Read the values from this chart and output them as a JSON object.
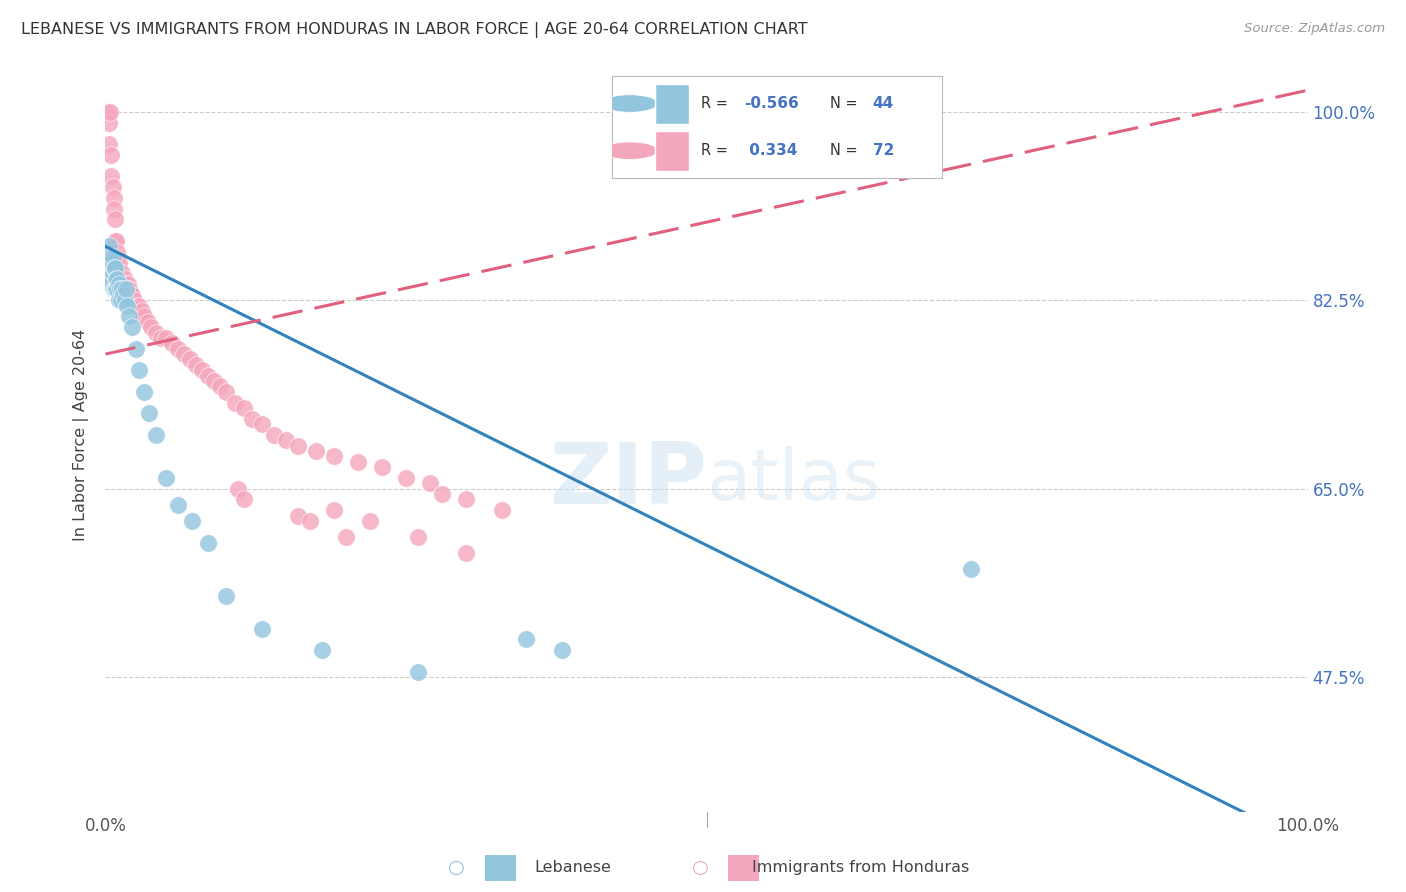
{
  "title": "LEBANESE VS IMMIGRANTS FROM HONDURAS IN LABOR FORCE | AGE 20-64 CORRELATION CHART",
  "source": "Source: ZipAtlas.com",
  "ylabel": "In Labor Force | Age 20-64",
  "xlim": [
    0.0,
    1.0
  ],
  "ylim": [
    0.35,
    1.05
  ],
  "yticks": [
    0.475,
    0.65,
    0.825,
    1.0
  ],
  "ytick_labels": [
    "47.5%",
    "65.0%",
    "82.5%",
    "100.0%"
  ],
  "xtick_labels": [
    "0.0%",
    "100.0%"
  ],
  "xticks": [
    0.0,
    1.0
  ],
  "blue_color": "#92c5de",
  "pink_color": "#f4a6bc",
  "blue_line_color": "#3182bd",
  "pink_line_color": "#e0607e",
  "watermark_zip": "ZIP",
  "watermark_atlas": "atlas",
  "blue_scatter_x": [
    0.002,
    0.003,
    0.003,
    0.004,
    0.004,
    0.005,
    0.005,
    0.006,
    0.006,
    0.007,
    0.007,
    0.008,
    0.008,
    0.009,
    0.009,
    0.01,
    0.01,
    0.011,
    0.011,
    0.012,
    0.013,
    0.014,
    0.015,
    0.016,
    0.017,
    0.018,
    0.02,
    0.022,
    0.025,
    0.028,
    0.032,
    0.036,
    0.042,
    0.05,
    0.06,
    0.072,
    0.085,
    0.1,
    0.13,
    0.18,
    0.26,
    0.35,
    0.72,
    0.38
  ],
  "blue_scatter_y": [
    0.87,
    0.875,
    0.855,
    0.865,
    0.845,
    0.86,
    0.84,
    0.865,
    0.85,
    0.855,
    0.835,
    0.855,
    0.835,
    0.845,
    0.835,
    0.845,
    0.835,
    0.84,
    0.825,
    0.835,
    0.825,
    0.835,
    0.83,
    0.825,
    0.835,
    0.82,
    0.81,
    0.8,
    0.78,
    0.76,
    0.74,
    0.72,
    0.7,
    0.66,
    0.635,
    0.62,
    0.6,
    0.55,
    0.52,
    0.5,
    0.48,
    0.51,
    0.575,
    0.5
  ],
  "pink_scatter_x": [
    0.002,
    0.003,
    0.003,
    0.004,
    0.005,
    0.005,
    0.006,
    0.007,
    0.007,
    0.008,
    0.008,
    0.009,
    0.01,
    0.01,
    0.011,
    0.011,
    0.012,
    0.013,
    0.014,
    0.015,
    0.016,
    0.017,
    0.018,
    0.019,
    0.02,
    0.021,
    0.022,
    0.024,
    0.026,
    0.028,
    0.03,
    0.032,
    0.035,
    0.038,
    0.042,
    0.046,
    0.05,
    0.055,
    0.06,
    0.065,
    0.07,
    0.075,
    0.08,
    0.085,
    0.09,
    0.095,
    0.1,
    0.108,
    0.115,
    0.122,
    0.13,
    0.14,
    0.15,
    0.16,
    0.175,
    0.19,
    0.21,
    0.23,
    0.25,
    0.27,
    0.3,
    0.33,
    0.28,
    0.16,
    0.19,
    0.22,
    0.26,
    0.3,
    0.11,
    0.115,
    0.17,
    0.2
  ],
  "pink_scatter_y": [
    1.0,
    0.99,
    0.97,
    1.0,
    0.96,
    0.94,
    0.93,
    0.92,
    0.91,
    0.9,
    0.88,
    0.88,
    0.86,
    0.87,
    0.85,
    0.86,
    0.84,
    0.845,
    0.85,
    0.84,
    0.845,
    0.84,
    0.835,
    0.84,
    0.835,
    0.83,
    0.83,
    0.825,
    0.82,
    0.82,
    0.815,
    0.81,
    0.805,
    0.8,
    0.795,
    0.79,
    0.79,
    0.785,
    0.78,
    0.775,
    0.77,
    0.765,
    0.76,
    0.755,
    0.75,
    0.745,
    0.74,
    0.73,
    0.725,
    0.715,
    0.71,
    0.7,
    0.695,
    0.69,
    0.685,
    0.68,
    0.675,
    0.67,
    0.66,
    0.655,
    0.64,
    0.63,
    0.645,
    0.625,
    0.63,
    0.62,
    0.605,
    0.59,
    0.65,
    0.64,
    0.62,
    0.605
  ],
  "blue_line_x": [
    0.0,
    1.0
  ],
  "blue_line_y": [
    0.875,
    0.32
  ],
  "pink_line_x": [
    0.0,
    1.0
  ],
  "pink_line_y": [
    0.775,
    1.02
  ],
  "pink_line_dashes": [
    8,
    5
  ]
}
